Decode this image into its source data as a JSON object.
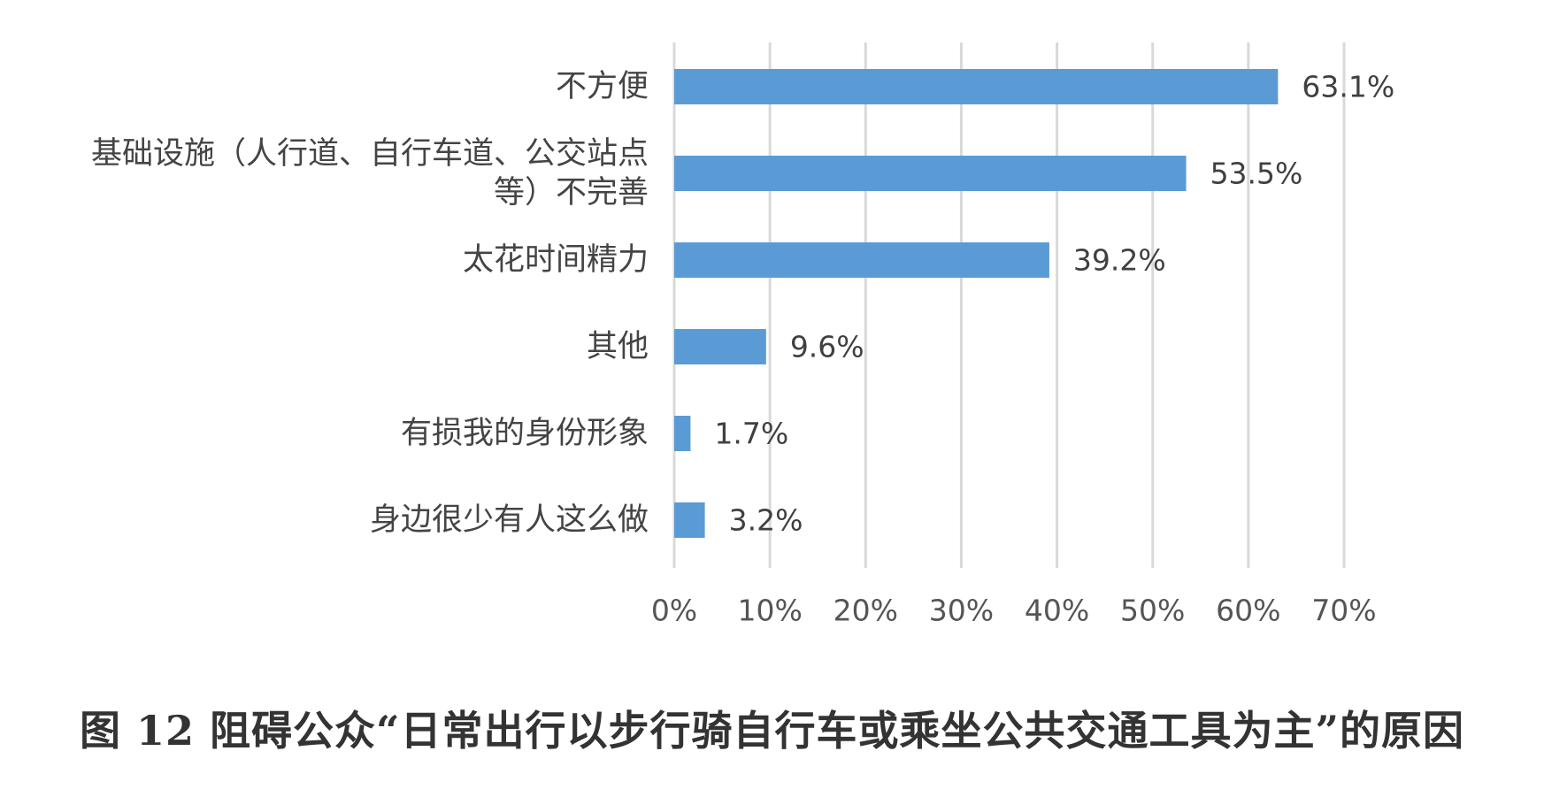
{
  "caption": "图 12 阻碍公众“日常出行以步行骑自行车或乘坐公共交通工具为主”的原因",
  "chart_data": {
    "type": "bar",
    "orientation": "horizontal",
    "categories": [
      "不方便",
      "基础设施（人行道、自行车道、公交站点等）不完善",
      "太花时间精力",
      "其他",
      "有损我的身份形象",
      "身边很少有人这么做"
    ],
    "category_lines": [
      [
        "不方便"
      ],
      [
        "基础设施（人行道、自行车道、公交站点",
        "等）不完善"
      ],
      [
        "太花时间精力"
      ],
      [
        "其他"
      ],
      [
        "有损我的身份形象"
      ],
      [
        "身边很少有人这么做"
      ]
    ],
    "values": [
      63.1,
      53.5,
      39.2,
      9.6,
      1.7,
      3.2
    ],
    "value_labels": [
      "63.1%",
      "53.5%",
      "39.2%",
      "9.6%",
      "1.7%",
      "3.2%"
    ],
    "xlim": [
      0,
      70
    ],
    "x_ticks": [
      0,
      10,
      20,
      30,
      40,
      50,
      60,
      70
    ],
    "x_tick_labels": [
      "0%",
      "10%",
      "20%",
      "30%",
      "40%",
      "50%",
      "60%",
      "70%"
    ],
    "grid": true,
    "legend": "none",
    "bar_color": "#5B9BD5",
    "grid_color": "#D9D9D9"
  }
}
